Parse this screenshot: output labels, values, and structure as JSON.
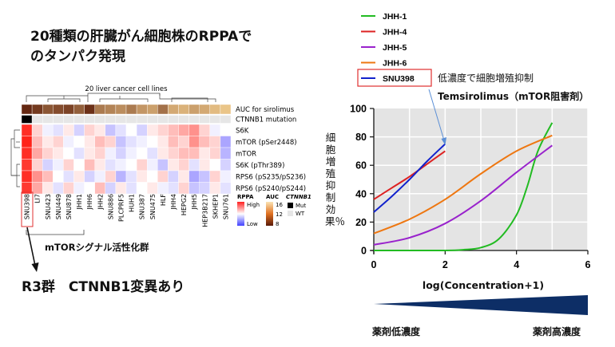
{
  "title": "20種類の肝臓がん細胞株のRPPAで\nのタンパク発現",
  "heatmap": {
    "top_label": "20 liver cancer cell lines",
    "row_labels": [
      "AUC for sirolimus",
      "CTNNB1 mutation",
      "S6K",
      "mTOR (pSer2448)",
      "mTOR",
      "S6K (pThr389)",
      "RPS6 (pS235/pS236)",
      "RPS6 (pS240/pS244)"
    ],
    "cell_lines": [
      "SNU398",
      "LI7",
      "SNU423",
      "SNU449",
      "SNU878",
      "JHH1",
      "JHH6",
      "JHH2",
      "SNU886",
      "PLCPRF5",
      "HUH1",
      "SNU387",
      "SNU475",
      "HLF",
      "JHH4",
      "HEPG2",
      "JHH5",
      "HEP3B217",
      "SKHEP1",
      "SNU761"
    ],
    "auc": [
      0.05,
      0.15,
      0.3,
      0.25,
      0.2,
      0.35,
      0.1,
      0.5,
      0.55,
      0.6,
      0.5,
      0.65,
      0.7,
      0.45,
      0.75,
      0.8,
      0.7,
      0.75,
      0.85,
      0.9
    ],
    "mutation": [
      1,
      0,
      0,
      0,
      0,
      0,
      0,
      0,
      0,
      0,
      0,
      0,
      0,
      0,
      0,
      0,
      0,
      0,
      0,
      0
    ],
    "values": [
      [
        0.95,
        0.2,
        -0.1,
        -0.2,
        0.1,
        -0.3,
        0.2,
        0.1,
        -0.4,
        -0.2,
        0.0,
        -0.3,
        0.1,
        0.2,
        0.3,
        0.4,
        0.5,
        0.2,
        -0.1,
        0.0
      ],
      [
        1.0,
        0.3,
        0.1,
        0.2,
        -0.1,
        0.0,
        0.1,
        0.3,
        0.2,
        -0.4,
        -0.2,
        -0.1,
        0.0,
        0.1,
        0.3,
        0.2,
        0.5,
        0.3,
        0.2,
        -0.6
      ],
      [
        0.95,
        0.4,
        0.2,
        0.1,
        0.0,
        -0.2,
        0.1,
        0.2,
        -0.1,
        -0.3,
        -0.1,
        0.0,
        -0.2,
        0.1,
        0.2,
        0.3,
        0.3,
        0.1,
        0.2,
        -0.5
      ],
      [
        0.9,
        0.2,
        -0.3,
        -0.1,
        0.2,
        0.0,
        0.3,
        0.1,
        -0.2,
        -0.1,
        0.0,
        0.2,
        -0.1,
        -0.4,
        0.1,
        0.2,
        -0.2,
        0.1,
        0.0,
        -0.3
      ],
      [
        0.95,
        0.5,
        0.3,
        0.0,
        -0.2,
        0.1,
        -0.3,
        -0.1,
        0.2,
        -0.5,
        -0.2,
        0.1,
        0.0,
        0.2,
        -0.3,
        0.1,
        -0.6,
        -0.4,
        0.2,
        -0.1
      ],
      [
        0.9,
        0.4,
        0.1,
        -0.2,
        0.2,
        -0.1,
        0.0,
        0.3,
        -0.3,
        0.1,
        -0.2,
        0.0,
        0.1,
        -0.1,
        -0.2,
        0.2,
        -0.4,
        -0.3,
        0.1,
        -0.2
      ]
    ],
    "legend": {
      "rppa_title": "RPPA",
      "rppa_high": "High",
      "rppa_low": "Low",
      "auc_title": "AUC",
      "auc_ticks": [
        "16",
        "12",
        "8"
      ],
      "ctnnb1_title": "CTNNB1",
      "mut": "Mut",
      "wt": "WT"
    }
  },
  "mtor_group_label": "mTORシグナル活性化群",
  "r3_label": "R3群　CTNNB1変異あり",
  "line_chart": {
    "note": "低濃度で細胞増殖抑制",
    "title": "Temsirolimus（mTOR阻害剤）",
    "ylabel": "細胞増殖抑制効果％",
    "xlabel": "log(Concentration+1)",
    "low_dose": "薬剤低濃度",
    "high_dose": "薬剤高濃度",
    "colors": {
      "JHH-1": "#22bb22",
      "JHH-4": "#dd2222",
      "JHH-5": "#9922cc",
      "JHH-6": "#ee7711",
      "SNU398": "#1122cc"
    }
  },
  "chart_data": {
    "type": "line",
    "xlabel": "log(Concentration+1)",
    "ylabel": "細胞増殖抑制効果％",
    "title": "Temsirolimus（mTOR阻害剤）",
    "xlim": [
      0,
      6
    ],
    "ylim": [
      0,
      100
    ],
    "xticks": [
      "0",
      "2",
      "4",
      "6"
    ],
    "yticks": [
      "0",
      "20",
      "40",
      "60",
      "80",
      "100"
    ],
    "grid": true,
    "legend_position": "top-left-outside",
    "series": [
      {
        "name": "JHH-1",
        "x": [
          0,
          1,
          2,
          2.5,
          3,
          3.5,
          4,
          4.3,
          4.6,
          5
        ],
        "y": [
          0,
          0,
          0,
          0.5,
          2,
          8,
          25,
          45,
          70,
          90
        ]
      },
      {
        "name": "JHH-4",
        "x": [
          0,
          0.5,
          1,
          1.5,
          2
        ],
        "y": [
          36,
          44,
          52,
          61,
          70
        ]
      },
      {
        "name": "JHH-5",
        "x": [
          0,
          1,
          2,
          3,
          4,
          5
        ],
        "y": [
          4,
          9,
          19,
          35,
          55,
          74
        ]
      },
      {
        "name": "JHH-6",
        "x": [
          0,
          1,
          2,
          3,
          4,
          5
        ],
        "y": [
          12,
          22,
          36,
          54,
          70,
          81
        ]
      },
      {
        "name": "SNU398",
        "x": [
          0,
          0.5,
          1,
          1.5,
          2
        ],
        "y": [
          27,
          38,
          50,
          63,
          75
        ]
      }
    ]
  }
}
